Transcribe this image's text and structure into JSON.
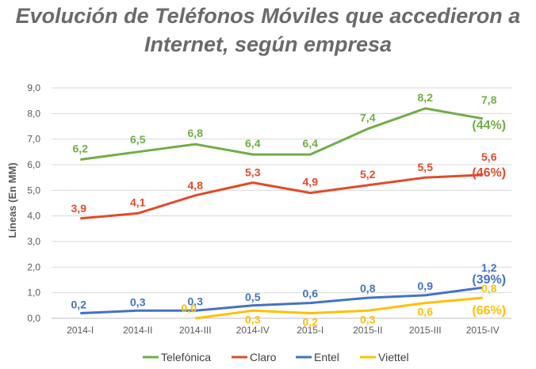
{
  "chart_data": {
    "type": "line",
    "title": "Evolución de Teléfonos Móviles que accedieron a Internet, según empresa",
    "xlabel": "",
    "ylabel": "Líneas (En MM)",
    "ylim": [
      0,
      9
    ],
    "yticks": [
      "0,0",
      "1,0",
      "2,0",
      "3,0",
      "4,0",
      "5,0",
      "6,0",
      "7,0",
      "8,0",
      "9,0"
    ],
    "categories": [
      "2014-I",
      "2014-II",
      "2014-III",
      "2014-IV",
      "2015-I",
      "2015-II",
      "2015-III",
      "2015-IV"
    ],
    "series": [
      {
        "name": "Telefónica",
        "color": "#70ad47",
        "values": [
          6.2,
          6.5,
          6.8,
          6.4,
          6.4,
          7.4,
          8.2,
          7.8
        ],
        "labels": [
          "6,2",
          "6,5",
          "6,8",
          "6,4",
          "6,4",
          "7,4",
          "8,2",
          "7,8"
        ],
        "share": "(44%)"
      },
      {
        "name": "Claro",
        "color": "#e04b2b",
        "values": [
          3.9,
          4.1,
          4.8,
          5.3,
          4.9,
          5.2,
          5.5,
          5.6
        ],
        "labels": [
          "3,9",
          "4,1",
          "4,8",
          "5,3",
          "4,9",
          "5,2",
          "5,5",
          "5,6"
        ],
        "share": "(46%)"
      },
      {
        "name": "Entel",
        "color": "#4472c4",
        "values": [
          0.2,
          0.3,
          0.3,
          0.5,
          0.6,
          0.8,
          0.9,
          1.2
        ],
        "labels": [
          "0,2",
          "0,3",
          "0,3",
          "0,5",
          "0,6",
          "0,8",
          "0,9",
          "1,2"
        ],
        "share": "(39%)"
      },
      {
        "name": "Viettel",
        "color": "#ffc000",
        "values": [
          null,
          null,
          0.0,
          0.3,
          0.2,
          0.3,
          0.6,
          0.8
        ],
        "labels": [
          "",
          "",
          "0,0",
          "0,3",
          "0,2",
          "0,3",
          "0,6",
          "0,8"
        ],
        "share": "(66%)"
      }
    ],
    "legend": "bottom",
    "grid": true
  }
}
